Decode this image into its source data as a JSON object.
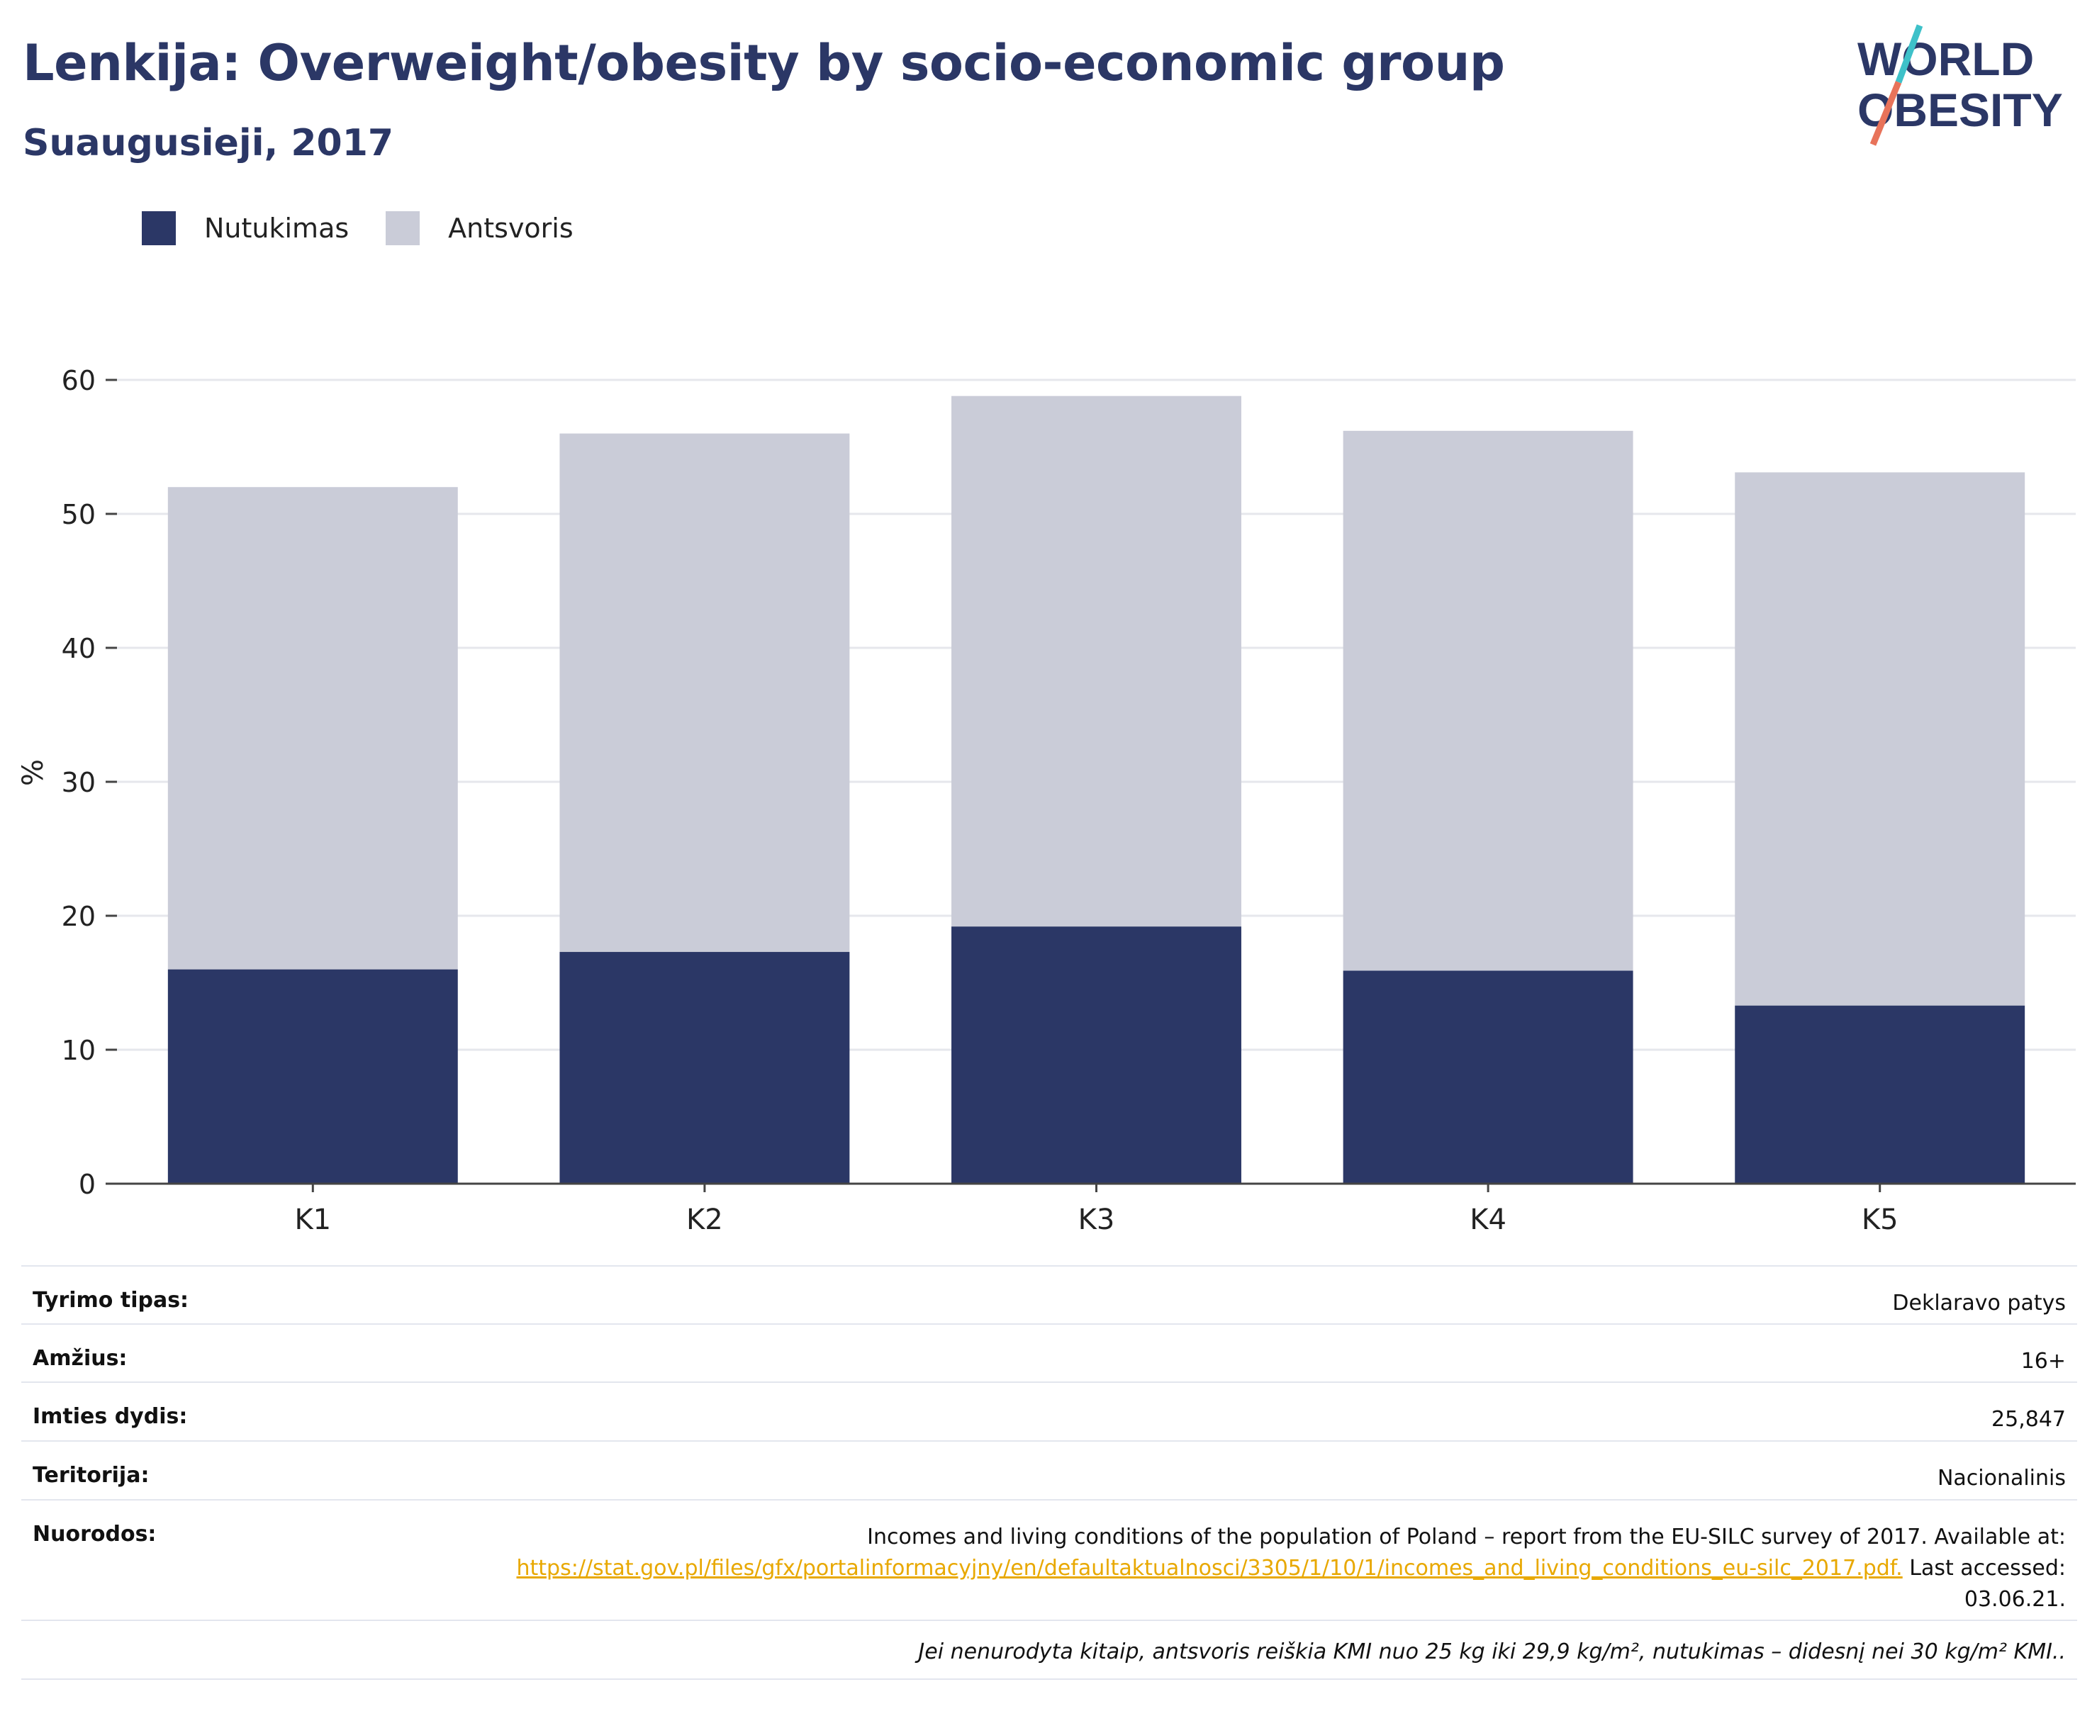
{
  "header": {
    "title": "Lenkija: Overweight/obesity by socio-economic group",
    "subtitle": "Suaugusieji, 2017"
  },
  "logo": {
    "line1": "WORLD",
    "line2": "OBESITY",
    "slash_colors": [
      "#3ec1c9",
      "#e8735a"
    ]
  },
  "colors": {
    "obesity": "#2b3766",
    "overweight": "#caccd8",
    "grid": "#e6e7ec",
    "axis": "#444444",
    "text": "#2b3766",
    "link": "#e8a800"
  },
  "chart_data": {
    "type": "bar",
    "stacked": true,
    "categories": [
      "K1",
      "K2",
      "K3",
      "K4",
      "K5"
    ],
    "series": [
      {
        "name": "Nutukimas",
        "color": "#2b3766",
        "values": [
          16.0,
          17.3,
          19.2,
          15.9,
          13.3
        ]
      },
      {
        "name": "Antsvoris",
        "color": "#caccd8",
        "values": [
          36.0,
          38.7,
          39.6,
          40.3,
          39.8
        ]
      }
    ],
    "ylabel": "%",
    "ylim": [
      0,
      60
    ],
    "yticks": [
      "0",
      "10",
      "20",
      "30",
      "40",
      "50",
      "60"
    ],
    "grid": true,
    "legend_position": "top-left"
  },
  "meta": [
    {
      "key": "Tyrimo tipas:",
      "value": "Deklaravo patys"
    },
    {
      "key": "Amžius:",
      "value": "16+"
    },
    {
      "key": "Imties dydis:",
      "value": "25,847"
    },
    {
      "key": "Teritorija:",
      "value": "Nacionalinis"
    }
  ],
  "reference": {
    "key": "Nuorodos:",
    "text_before": "Incomes and living conditions of the population of Poland – report from the EU-SILC survey of 2017. Available at:",
    "link": "https://stat.gov.pl/files/gfx/portalinformacyjny/en/defaultaktualnosci/3305/1/10/1/incomes_and_living_conditions_eu-silc_2017.pdf.",
    "text_after": "Last accessed: 03.06.21."
  },
  "footnote": "Jei nenurodyta kitaip, antsvoris reiškia KMI nuo 25 kg iki 29,9 kg/m², nutukimas – didesnį nei 30 kg/m² KMI.."
}
